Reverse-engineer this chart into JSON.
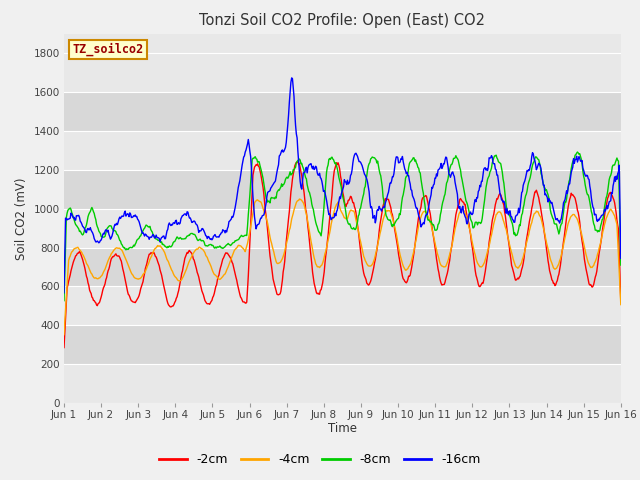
{
  "title": "Tonzi Soil CO2 Profile: Open (East) CO2",
  "ylabel": "Soil CO2 (mV)",
  "xlabel": "Time",
  "watermark": "TZ_soilco2",
  "ylim": [
    0,
    1900
  ],
  "yticks": [
    0,
    200,
    400,
    600,
    800,
    1000,
    1200,
    1400,
    1600,
    1800
  ],
  "x_labels": [
    "Jun 1",
    "Jun 2",
    "Jun 3",
    "Jun 4",
    "Jun 5",
    "Jun 6",
    "Jun 7",
    "Jun 8",
    "Jun 9",
    "Jun 10",
    "Jun 11",
    "Jun 12",
    "Jun 13",
    "Jun 14",
    "Jun 15",
    "Jun 16"
  ],
  "colors": {
    "2cm": "#ff0000",
    "4cm": "#ffa500",
    "8cm": "#00cc00",
    "16cm": "#0000ff"
  },
  "legend_labels": [
    "-2cm",
    "-4cm",
    "-8cm",
    "-16cm"
  ],
  "fig_bg": "#f0f0f0",
  "band_light": "#e8e8e8",
  "band_dark": "#d8d8d8",
  "watermark_bg": "#ffffcc",
  "watermark_border": "#cc8800"
}
